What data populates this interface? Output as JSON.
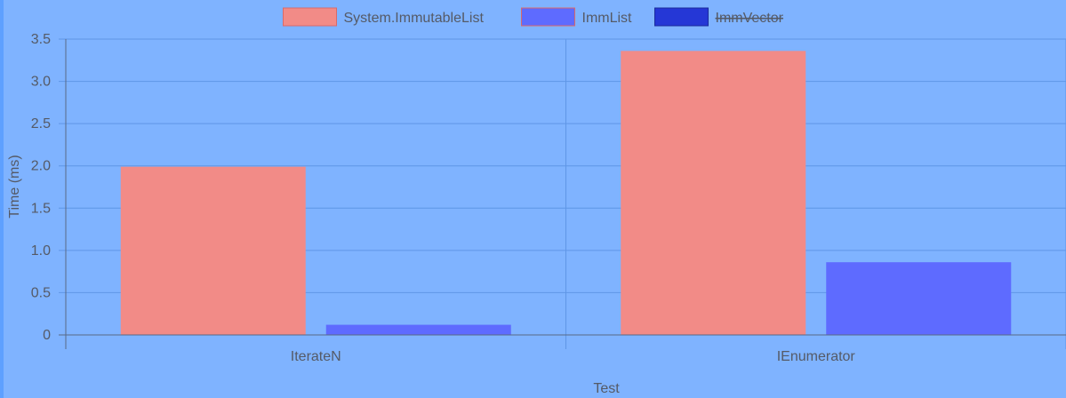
{
  "chart_data": {
    "type": "bar",
    "categories": [
      "IterateN",
      "IEnumerator"
    ],
    "series": [
      {
        "name": "System.ImmutableList",
        "values": [
          1.99,
          3.36
        ],
        "color": "#f28b87",
        "hidden": false
      },
      {
        "name": "ImmList",
        "values": [
          0.12,
          0.86
        ],
        "color": "#5e6bff",
        "hidden": false
      },
      {
        "name": "ImmVector",
        "values": [
          null,
          null
        ],
        "color": "#2537d6",
        "hidden": true
      }
    ],
    "xlabel": "Test",
    "ylabel": "Time (ms)",
    "ylim": [
      0,
      3.5
    ],
    "yticks": [
      "0",
      "0.5",
      "1.0",
      "1.5",
      "2.0",
      "2.5",
      "3.0",
      "3.5"
    ],
    "grid": true,
    "legend_position": "top-center",
    "colors": {
      "background": "#7fb3ff",
      "grid": "#5f96e6",
      "text": "#555a66"
    }
  }
}
